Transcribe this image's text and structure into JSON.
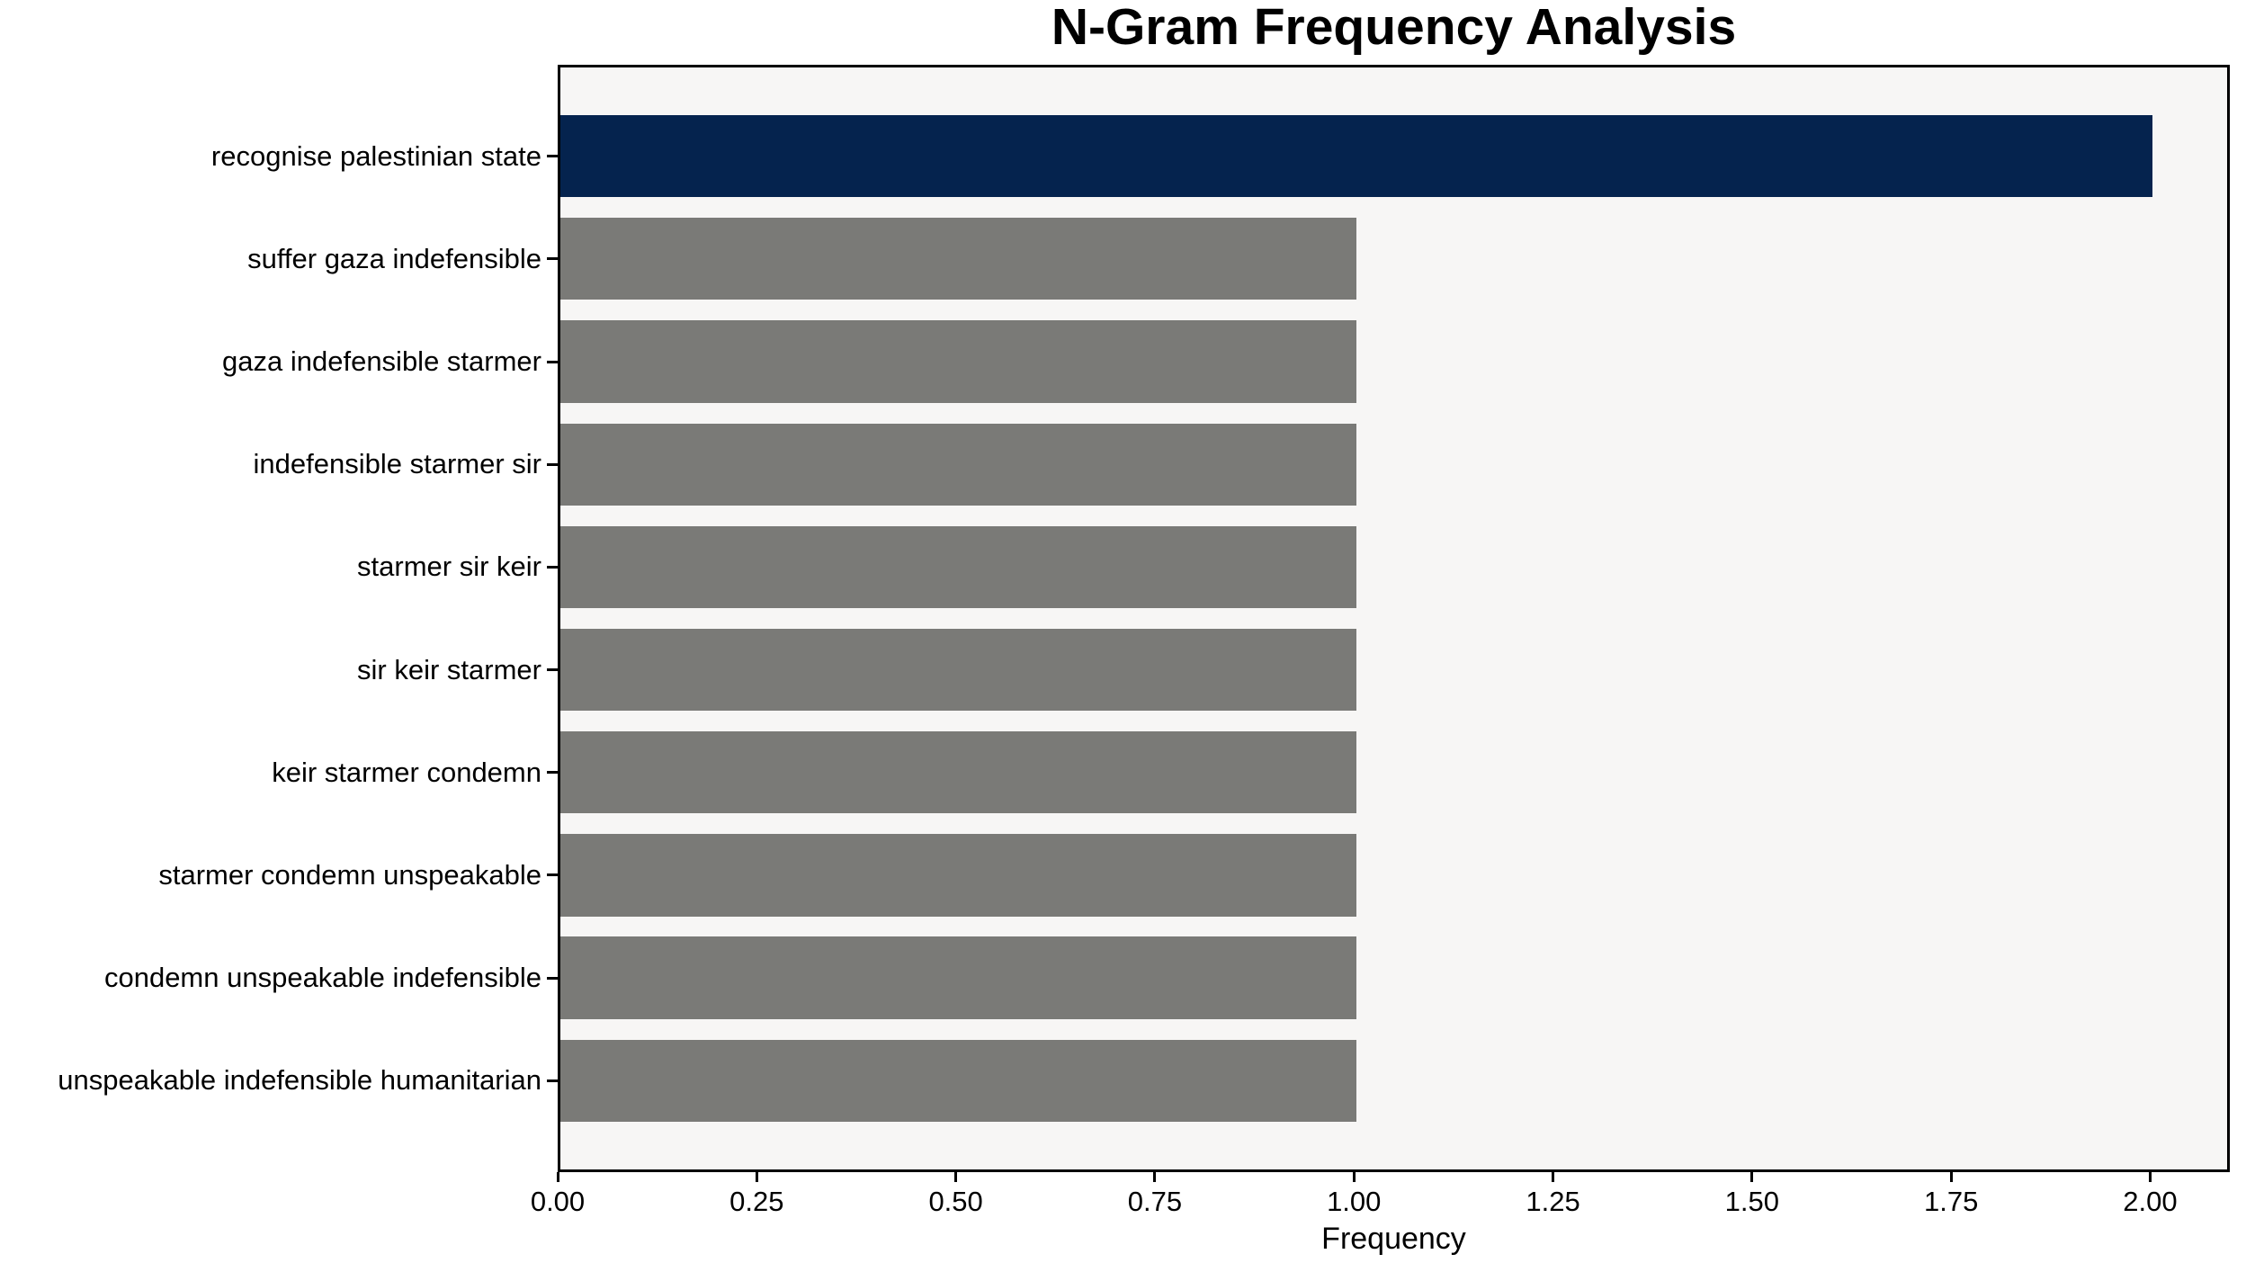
{
  "chart_data": {
    "type": "bar",
    "orientation": "horizontal",
    "title": "N-Gram Frequency Analysis",
    "xlabel": "Frequency",
    "ylabel": "",
    "categories": [
      "recognise palestinian state",
      "suffer gaza indefensible",
      "gaza indefensible starmer",
      "indefensible starmer sir",
      "starmer sir keir",
      "sir keir starmer",
      "keir starmer condemn",
      "starmer condemn unspeakable",
      "condemn unspeakable indefensible",
      "unspeakable indefensible humanitarian"
    ],
    "values": [
      2.0,
      1.0,
      1.0,
      1.0,
      1.0,
      1.0,
      1.0,
      1.0,
      1.0,
      1.0
    ],
    "bar_colors": [
      "#05234e",
      "#7a7a77",
      "#7a7a77",
      "#7a7a77",
      "#7a7a77",
      "#7a7a77",
      "#7a7a77",
      "#7a7a77",
      "#7a7a77",
      "#7a7a77"
    ],
    "xlim": [
      0,
      2.1
    ],
    "xtick_values": [
      0,
      0.25,
      0.5,
      0.75,
      1.0,
      1.25,
      1.5,
      1.75,
      2.0
    ],
    "xtick_labels": [
      "0.00",
      "0.25",
      "0.50",
      "0.75",
      "1.00",
      "1.25",
      "1.50",
      "1.75",
      "2.00"
    ],
    "grid": false,
    "legend": null,
    "colors": {
      "highlight_bar": "#05234e",
      "default_bar": "#7a7a77",
      "plot_background": "#f7f6f5",
      "figure_background": "#ffffff",
      "spine": "#000000",
      "text": "#000000"
    }
  }
}
